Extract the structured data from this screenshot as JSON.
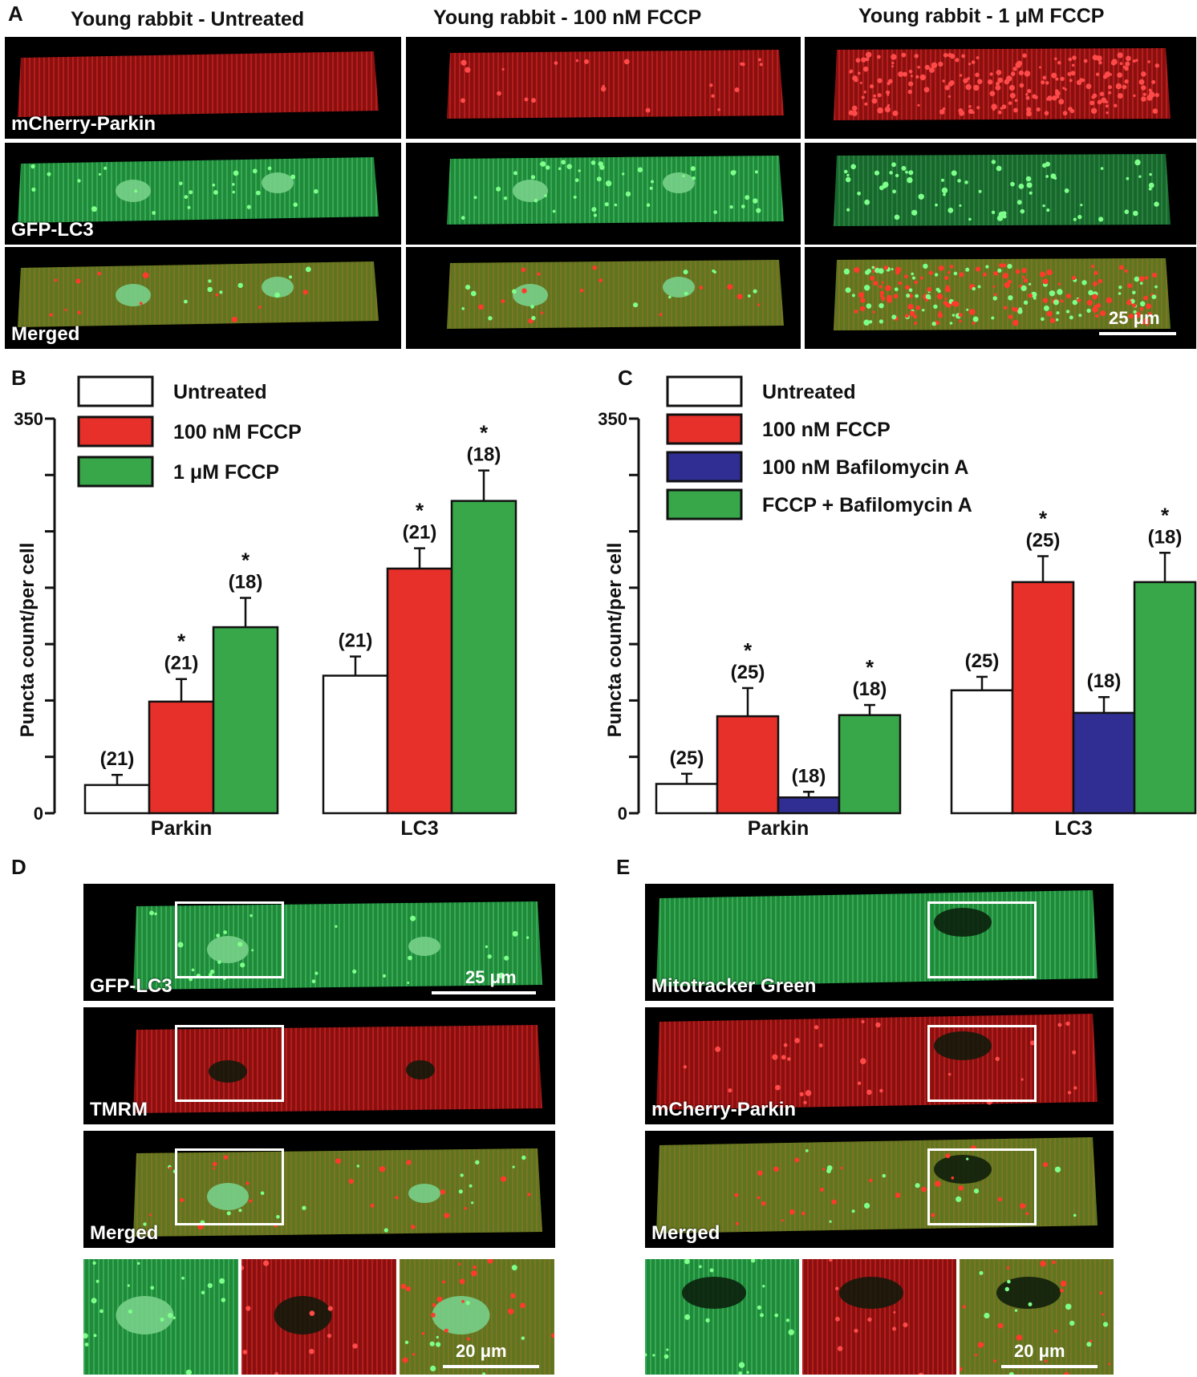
{
  "panelA": {
    "letter": "A",
    "columns": [
      "Young rabbit - Untreated",
      "Young rabbit - 100 nM FCCP",
      "Young rabbit - 1 μM FCCP"
    ],
    "rows": [
      "mCherry-Parkin",
      "GFP-LC3",
      "Merged"
    ],
    "scalebar": "25 μm"
  },
  "panelD": {
    "letter": "D",
    "rows": [
      "GFP-LC3",
      "TMRM",
      "Merged"
    ],
    "scalebar_main": "25 μm",
    "scalebar_zoom": "20 μm"
  },
  "panelE": {
    "letter": "E",
    "rows": [
      "Mitotracker Green",
      "mCherry-Parkin",
      "Merged"
    ],
    "scalebar_zoom": "20 μm"
  },
  "colors": {
    "untreated": "#ffffff",
    "fccp100": "#e8302a",
    "fccp1u": "#37a749",
    "bafilomycin": "#302e92",
    "combo": "#37a749"
  },
  "chart_data": [
    {
      "panel": "B",
      "type": "bar",
      "ylabel": "Puncta count/per cell",
      "ylim": [
        0,
        350
      ],
      "yticks": [
        0,
        50,
        100,
        150,
        200,
        250,
        300,
        350
      ],
      "ytick_labels": [
        "0",
        "350"
      ],
      "categories": [
        "Parkin",
        "LC3"
      ],
      "series": [
        {
          "name": "Untreated",
          "color": "#ffffff",
          "values": [
            25,
            122
          ],
          "errors": [
            9,
            17
          ],
          "n": [
            "(21)",
            "(21)"
          ],
          "sig": [
            "",
            ""
          ]
        },
        {
          "name": "100 nM FCCP",
          "color": "#e8302a",
          "values": [
            99,
            217
          ],
          "errors": [
            20,
            18
          ],
          "n": [
            "(21)",
            "(21)"
          ],
          "sig": [
            "*",
            "*"
          ]
        },
        {
          "name": "1 μM FCCP",
          "color": "#37a749",
          "values": [
            165,
            277
          ],
          "errors": [
            26,
            27
          ],
          "n": [
            "(18)",
            "(18)"
          ],
          "sig": [
            "*",
            "*"
          ]
        }
      ]
    },
    {
      "panel": "C",
      "type": "bar",
      "ylabel": "Puncta count/per cell",
      "ylim": [
        0,
        350
      ],
      "yticks": [
        0,
        50,
        100,
        150,
        200,
        250,
        300,
        350
      ],
      "ytick_labels": [
        "0",
        "350"
      ],
      "categories": [
        "Parkin",
        "LC3"
      ],
      "series": [
        {
          "name": "Untreated",
          "color": "#ffffff",
          "values": [
            26,
            109
          ],
          "errors": [
            9,
            12
          ],
          "n": [
            "(25)",
            "(25)"
          ],
          "sig": [
            "",
            ""
          ]
        },
        {
          "name": "100 nM FCCP",
          "color": "#e8302a",
          "values": [
            86,
            205
          ],
          "errors": [
            25,
            23
          ],
          "n": [
            "(25)",
            "(25)"
          ],
          "sig": [
            "*",
            "*"
          ]
        },
        {
          "name": "100 nM Bafilomycin A",
          "color": "#302e92",
          "values": [
            14,
            89
          ],
          "errors": [
            5,
            14
          ],
          "n": [
            "(18)",
            "(18)"
          ],
          "sig": [
            "",
            ""
          ]
        },
        {
          "name": "FCCP + Bafilomycin A",
          "color": "#37a749",
          "values": [
            87,
            205
          ],
          "errors": [
            9,
            26
          ],
          "n": [
            "(18)",
            "(18)"
          ],
          "sig": [
            "*",
            "*"
          ]
        }
      ]
    }
  ]
}
